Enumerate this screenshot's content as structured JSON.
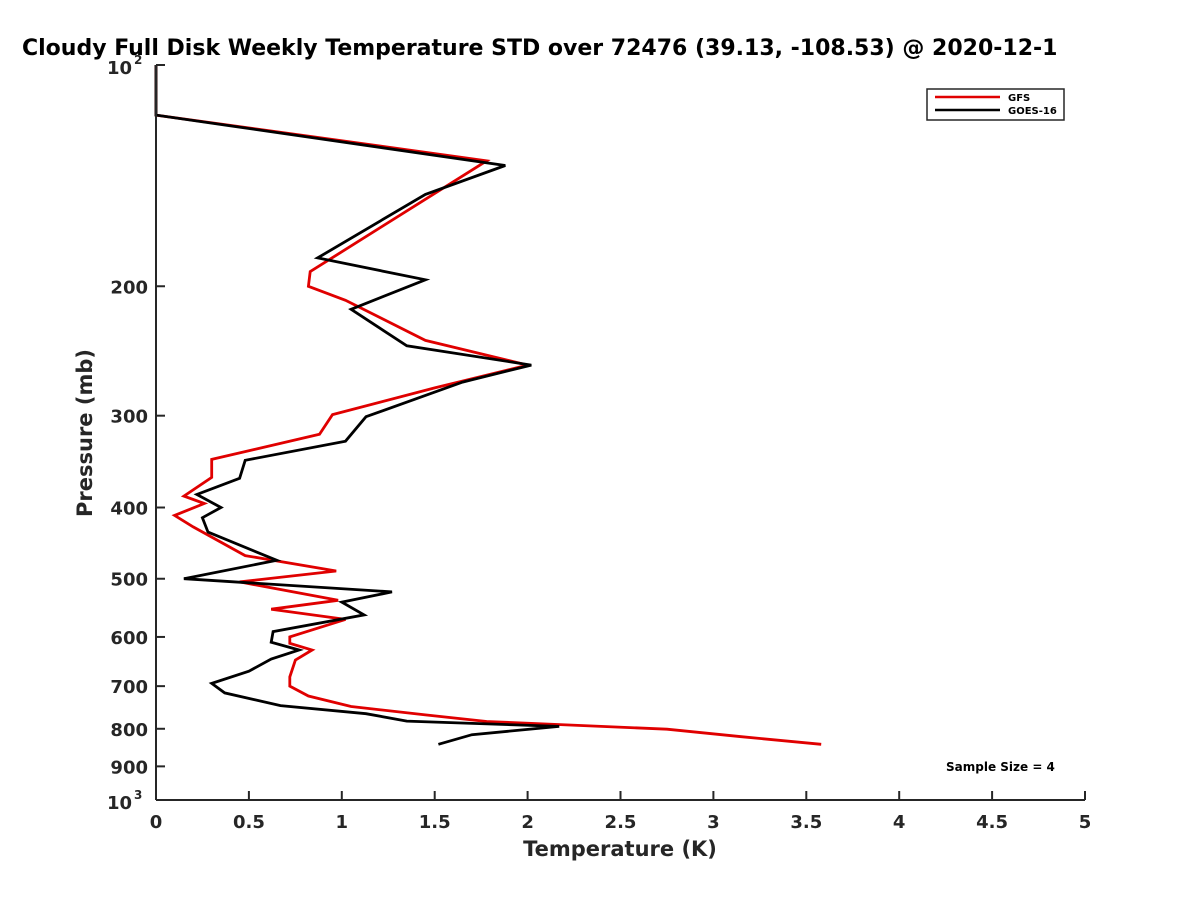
{
  "chart_data": {
    "type": "line",
    "title": "Cloudy Full Disk Weekly Temperature STD over 72476 (39.13, -108.53) @ 2020-12-1",
    "xlabel": "Temperature (K)",
    "ylabel": "Pressure (mb)",
    "xlim": [
      0,
      5
    ],
    "ylim": [
      100,
      1000
    ],
    "y_scale": "log",
    "y_reversed": true,
    "grid": false,
    "legend_position": "top-right",
    "x_ticks": [
      "0",
      "0.5",
      "1",
      "1.5",
      "2",
      "2.5",
      "3",
      "3.5",
      "4",
      "4.5",
      "5"
    ],
    "y_ticks": [
      {
        "value": 100,
        "base": "10",
        "exp": "2"
      },
      {
        "value": 200,
        "label": "200"
      },
      {
        "value": 300,
        "label": "300"
      },
      {
        "value": 400,
        "label": "400"
      },
      {
        "value": 500,
        "label": "500"
      },
      {
        "value": 600,
        "label": "600"
      },
      {
        "value": 700,
        "label": "700"
      },
      {
        "value": 800,
        "label": "800"
      },
      {
        "value": 900,
        "label": "900"
      },
      {
        "value": 1000,
        "base": "10",
        "exp": "3"
      }
    ],
    "annotation": "Sample Size = 4",
    "series": [
      {
        "name": "GFS",
        "color": "#e00000",
        "points": [
          [
            0,
            100
          ],
          [
            0,
            117
          ],
          [
            1.78,
            135
          ],
          [
            0.83,
            191
          ],
          [
            0.82,
            200
          ],
          [
            1.02,
            209
          ],
          [
            1.45,
            237
          ],
          [
            2.0,
            256
          ],
          [
            1.5,
            275
          ],
          [
            0.95,
            299
          ],
          [
            0.88,
            318
          ],
          [
            0.3,
            344
          ],
          [
            0.3,
            364
          ],
          [
            0.15,
            386
          ],
          [
            0.26,
            395
          ],
          [
            0.1,
            410
          ],
          [
            0.2,
            425
          ],
          [
            0.48,
            465
          ],
          [
            0.97,
            488
          ],
          [
            0.45,
            505
          ],
          [
            0.98,
            535
          ],
          [
            0.62,
            550
          ],
          [
            1.02,
            568
          ],
          [
            0.72,
            600
          ],
          [
            0.72,
            612
          ],
          [
            0.84,
            625
          ],
          [
            0.75,
            645
          ],
          [
            0.72,
            680
          ],
          [
            0.72,
            700
          ],
          [
            0.82,
            722
          ],
          [
            1.05,
            746
          ],
          [
            1.45,
            766
          ],
          [
            1.78,
            782
          ],
          [
            2.75,
            801
          ],
          [
            3.15,
            820
          ],
          [
            3.58,
            840
          ]
        ]
      },
      {
        "name": "GOES-16",
        "color": "#000000",
        "points": [
          [
            0,
            100
          ],
          [
            0,
            117
          ],
          [
            1.88,
            137
          ],
          [
            1.45,
            150
          ],
          [
            0.87,
            183
          ],
          [
            1.45,
            196
          ],
          [
            1.05,
            215
          ],
          [
            1.35,
            241
          ],
          [
            2.02,
            256
          ],
          [
            1.65,
            270
          ],
          [
            1.13,
            301
          ],
          [
            1.02,
            325
          ],
          [
            0.48,
            345
          ],
          [
            0.45,
            365
          ],
          [
            0.22,
            384
          ],
          [
            0.35,
            400
          ],
          [
            0.25,
            413
          ],
          [
            0.28,
            432
          ],
          [
            0.65,
            472
          ],
          [
            0.15,
            500
          ],
          [
            1.27,
            521
          ],
          [
            1.0,
            538
          ],
          [
            1.12,
            560
          ],
          [
            0.63,
            590
          ],
          [
            0.62,
            610
          ],
          [
            0.77,
            625
          ],
          [
            0.62,
            643
          ],
          [
            0.5,
            668
          ],
          [
            0.3,
            694
          ],
          [
            0.37,
            715
          ],
          [
            0.67,
            744
          ],
          [
            1.13,
            763
          ],
          [
            1.35,
            781
          ],
          [
            2.17,
            794
          ],
          [
            1.7,
            815
          ],
          [
            1.52,
            840
          ]
        ]
      }
    ]
  }
}
